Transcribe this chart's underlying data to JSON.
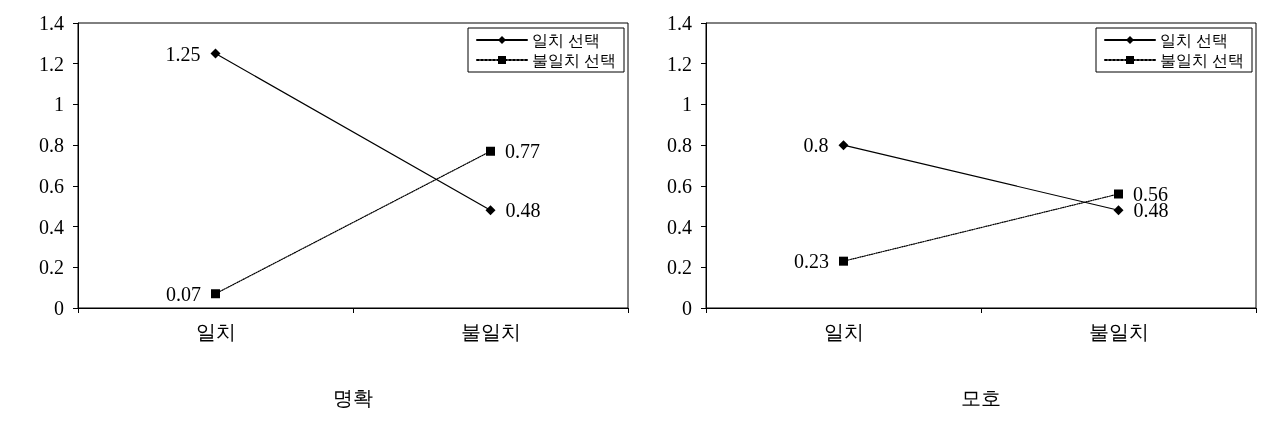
{
  "chart_data": [
    {
      "type": "line",
      "xlabel": "명확",
      "categories": [
        "일치",
        "불일치"
      ],
      "series": [
        {
          "name": "일치 선택",
          "color": "#000000",
          "values": [
            1.25,
            0.48
          ],
          "marker": "diamond",
          "line_style": "solid"
        },
        {
          "name": "불일치 선택",
          "color": "#000000",
          "values": [
            0.07,
            0.77
          ],
          "marker": "square",
          "line_style": "dotted"
        }
      ],
      "ylim": [
        0,
        1.4
      ],
      "yticks": [
        0,
        0.2,
        0.4,
        0.6,
        0.8,
        1,
        1.2,
        1.4
      ],
      "grid": false,
      "legend": "top right",
      "data_labels": true
    },
    {
      "type": "line",
      "xlabel": "모호",
      "categories": [
        "일치",
        "불일치"
      ],
      "series": [
        {
          "name": "일치 선택",
          "color": "#000000",
          "values": [
            0.8,
            0.48
          ],
          "marker": "diamond",
          "line_style": "solid"
        },
        {
          "name": "불일치 선택",
          "color": "#000000",
          "values": [
            0.23,
            0.56
          ],
          "marker": "square",
          "line_style": "dotted"
        }
      ],
      "ylim": [
        0,
        1.4
      ],
      "yticks": [
        0,
        0.2,
        0.4,
        0.6,
        0.8,
        1,
        1.2,
        1.4
      ],
      "grid": false,
      "legend": "top right",
      "data_labels": true
    }
  ]
}
